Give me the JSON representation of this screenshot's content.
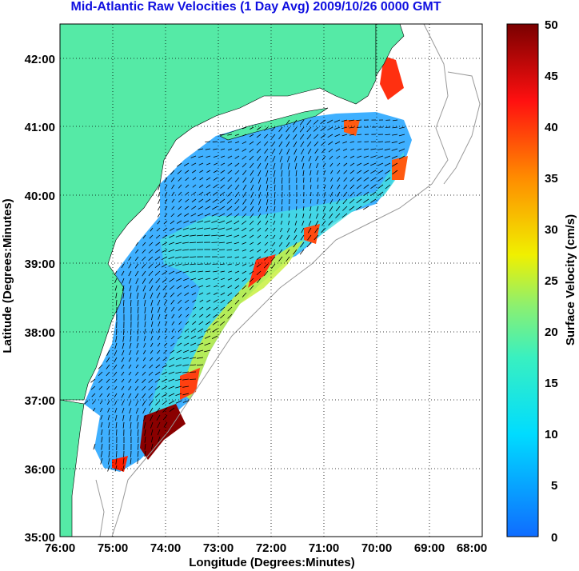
{
  "title": "Mid-Atlantic Raw Velocities (1 Day Avg) 2009/10/26 0000 GMT",
  "map": {
    "xlabel": "Longitude (Degrees:Minutes)",
    "ylabel": "Latitude (Degrees:Minutes)",
    "x_ticks": [
      "76:00",
      "75:00",
      "74:00",
      "73:00",
      "72:00",
      "71:00",
      "70:00",
      "69:00",
      "68:00"
    ],
    "y_ticks": [
      "42:00",
      "41:00",
      "40:00",
      "39:00",
      "38:00",
      "37:00",
      "36:00",
      "35:00"
    ],
    "land_color": "#55eaa6",
    "grid": "dotted"
  },
  "colorbar": {
    "label": "Surface Velocity (cm/s)",
    "ticks": [
      "50",
      "45",
      "40",
      "35",
      "30",
      "25",
      "20",
      "15",
      "10",
      "5",
      "0"
    ],
    "range": [
      0,
      50
    ],
    "colormap": "jet"
  }
}
